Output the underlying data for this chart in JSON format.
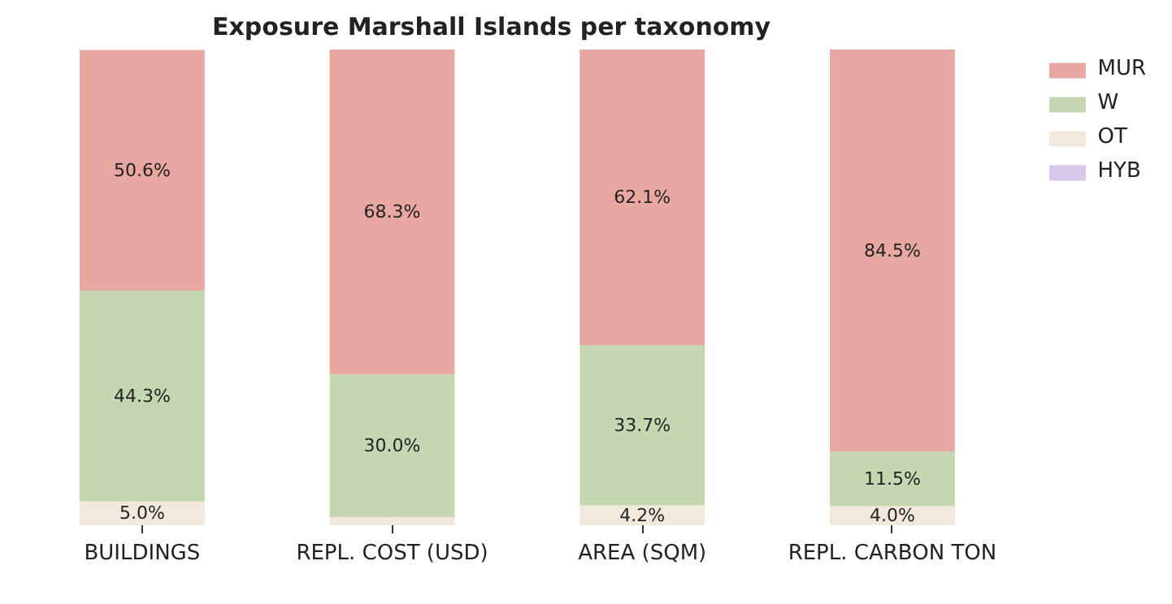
{
  "chart_data": {
    "type": "bar",
    "title": "Exposure Marshall Islands per taxonomy",
    "stacked": true,
    "legend": "top right",
    "grid": false,
    "categories": [
      "BUILDINGS",
      "REPL. COST (USD)",
      "AREA (SQM)",
      "REPL. CARBON TON"
    ],
    "series": [
      {
        "name": "HYB",
        "color": "#d8c7ea",
        "values": [
          0,
          0,
          0,
          0
        ],
        "value_labels": [
          null,
          null,
          null,
          null
        ]
      },
      {
        "name": "OT",
        "color": "#f3e8dc",
        "values": [
          5.0,
          1.7,
          4.2,
          4.0
        ],
        "value_labels": [
          "5.0%",
          null,
          "4.2%",
          "4.0%"
        ]
      },
      {
        "name": "W",
        "color": "#c4d7b0",
        "values": [
          44.3,
          30.0,
          33.7,
          11.5
        ],
        "value_labels": [
          "44.3%",
          "30.0%",
          "33.7%",
          "11.5%"
        ]
      },
      {
        "name": "MUR",
        "color": "#e8a8a1",
        "values": [
          50.6,
          68.3,
          62.1,
          84.5
        ],
        "value_labels": [
          "50.6%",
          "68.3%",
          "62.1%",
          "84.5%"
        ]
      }
    ]
  }
}
